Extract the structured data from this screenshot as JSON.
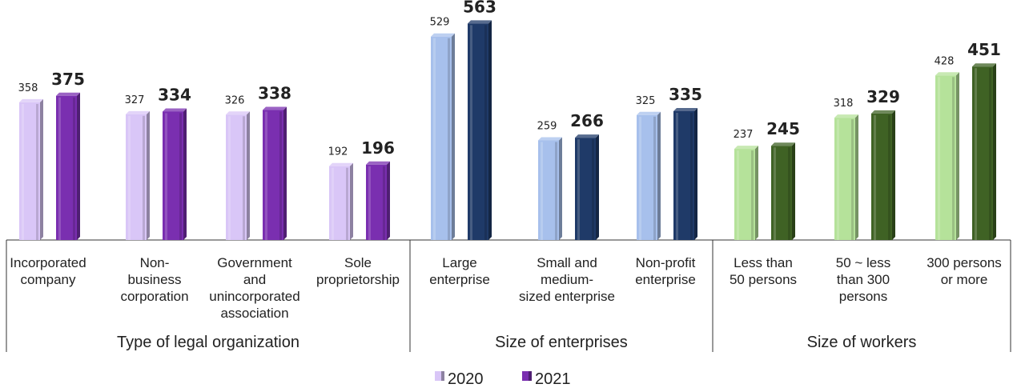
{
  "chart_data": {
    "type": "bar",
    "legend": {
      "placement": "bottom-center",
      "entries": [
        "2020",
        "2021"
      ]
    },
    "groups": [
      {
        "label": "Type of legal organization",
        "categories": [
          {
            "label": [
              "Incorporated",
              "company"
            ],
            "values": [
              358,
              375
            ]
          },
          {
            "label": [
              "Non-",
              "business",
              "corporation"
            ],
            "values": [
              327,
              334
            ]
          },
          {
            "label": [
              "Government",
              "and",
              "unincorporated",
              "association"
            ],
            "values": [
              326,
              338
            ]
          },
          {
            "label": [
              "Sole",
              "proprietorship"
            ],
            "values": [
              192,
              196
            ]
          }
        ],
        "colors": [
          "#d9c6f7",
          "#7a2fb0"
        ]
      },
      {
        "label": "Size of enterprises",
        "categories": [
          {
            "label": [
              "Large",
              "enterprise"
            ],
            "values": [
              529,
              563
            ]
          },
          {
            "label": [
              "Small and",
              "medium-",
              "sized enterprise"
            ],
            "values": [
              259,
              266
            ]
          },
          {
            "label": [
              "Non-profit",
              "enterprise"
            ],
            "values": [
              325,
              335
            ]
          }
        ],
        "colors": [
          "#a7c0ec",
          "#1f3a68"
        ]
      },
      {
        "label": "Size of workers",
        "categories": [
          {
            "label": [
              "Less than",
              "50 persons"
            ],
            "values": [
              237,
              245
            ]
          },
          {
            "label": [
              "50 ~ less",
              "than 300",
              "persons"
            ],
            "values": [
              318,
              329
            ]
          },
          {
            "label": [
              "300 persons",
              "or more"
            ],
            "values": [
              428,
              451
            ]
          }
        ],
        "colors": [
          "#b5e29a",
          "#3f6224"
        ]
      }
    ],
    "legend_colors": [
      "#d9c6f7",
      "#7a2fb0"
    ],
    "ylim": [
      0,
      600
    ],
    "grid": false
  }
}
